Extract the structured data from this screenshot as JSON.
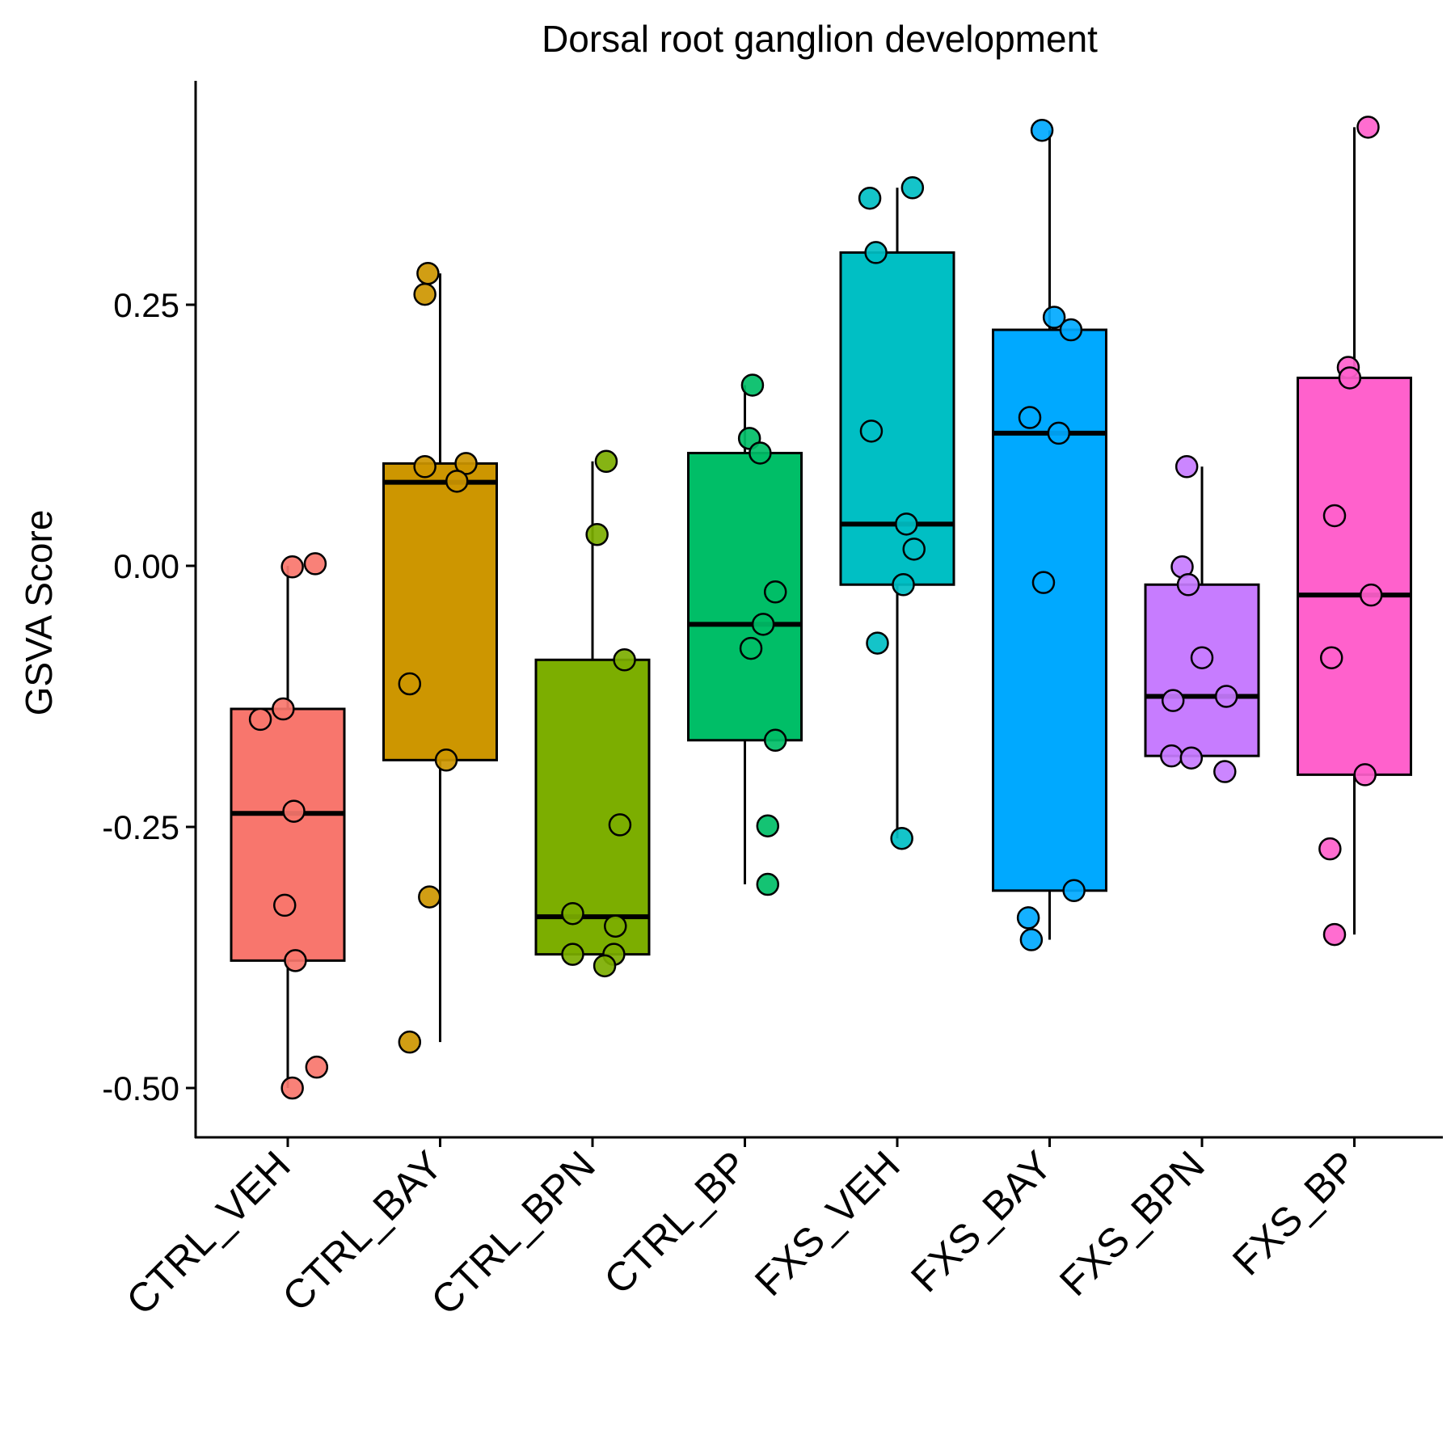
{
  "chart_data": {
    "type": "box",
    "title": "Dorsal root ganglion development",
    "xlabel": "",
    "ylabel": "GSVA Score",
    "ylim": [
      -0.545,
      0.46
    ],
    "yticks": [
      0.25,
      0.0,
      -0.25,
      -0.5
    ],
    "ytick_labels": [
      "0.25",
      "0.00",
      "-0.25",
      "-0.50"
    ],
    "grid": false,
    "legend": "none",
    "categories": [
      "CTRL_VEH",
      "CTRL_BAY",
      "CTRL_BPN",
      "CTRL_BP",
      "FXS_VEH",
      "FXS_BAY",
      "FXS_BPN",
      "FXS_BP"
    ],
    "series": [
      {
        "category": "CTRL_VEH",
        "color": "#F8766D",
        "whisker_low": -0.5,
        "q1": -0.378,
        "median": -0.237,
        "q3": -0.137,
        "whisker_high": 0.0,
        "points": [
          {
            "dx": 0.03,
            "y": -0.001
          },
          {
            "dx": 0.18,
            "y": 0.002
          },
          {
            "dx": -0.18,
            "y": -0.147
          },
          {
            "dx": -0.03,
            "y": -0.137
          },
          {
            "dx": 0.04,
            "y": -0.235
          },
          {
            "dx": -0.02,
            "y": -0.325
          },
          {
            "dx": 0.05,
            "y": -0.378
          },
          {
            "dx": 0.19,
            "y": -0.48
          },
          {
            "dx": 0.03,
            "y": -0.5
          }
        ]
      },
      {
        "category": "CTRL_BAY",
        "color": "#CD9600",
        "whisker_low": -0.456,
        "q1": -0.186,
        "median": 0.08,
        "q3": 0.098,
        "whisker_high": 0.28,
        "points": [
          {
            "dx": -0.08,
            "y": 0.28
          },
          {
            "dx": -0.1,
            "y": 0.26
          },
          {
            "dx": -0.1,
            "y": 0.095
          },
          {
            "dx": 0.17,
            "y": 0.098
          },
          {
            "dx": 0.11,
            "y": 0.081
          },
          {
            "dx": -0.2,
            "y": -0.113
          },
          {
            "dx": 0.04,
            "y": -0.186
          },
          {
            "dx": -0.07,
            "y": -0.317
          },
          {
            "dx": -0.2,
            "y": -0.456
          }
        ]
      },
      {
        "category": "CTRL_BPN",
        "color": "#7CAE00",
        "whisker_low": -0.372,
        "q1": -0.372,
        "median": -0.336,
        "q3": -0.09,
        "whisker_high": 0.1,
        "points": [
          {
            "dx": 0.09,
            "y": 0.1
          },
          {
            "dx": 0.03,
            "y": 0.03
          },
          {
            "dx": 0.21,
            "y": -0.09
          },
          {
            "dx": 0.18,
            "y": -0.248
          },
          {
            "dx": -0.13,
            "y": -0.333
          },
          {
            "dx": 0.15,
            "y": -0.345
          },
          {
            "dx": -0.13,
            "y": -0.372
          },
          {
            "dx": 0.14,
            "y": -0.372
          },
          {
            "dx": 0.08,
            "y": -0.383
          }
        ]
      },
      {
        "category": "CTRL_BP",
        "color": "#00BE67",
        "whisker_low": -0.305,
        "q1": -0.167,
        "median": -0.056,
        "q3": 0.108,
        "whisker_high": 0.173,
        "points": [
          {
            "dx": 0.05,
            "y": 0.173
          },
          {
            "dx": 0.03,
            "y": 0.122
          },
          {
            "dx": 0.1,
            "y": 0.108
          },
          {
            "dx": 0.2,
            "y": -0.025
          },
          {
            "dx": 0.12,
            "y": -0.056
          },
          {
            "dx": 0.04,
            "y": -0.079
          },
          {
            "dx": 0.2,
            "y": -0.167
          },
          {
            "dx": 0.15,
            "y": -0.249
          },
          {
            "dx": 0.15,
            "y": -0.305
          }
        ]
      },
      {
        "category": "FXS_VEH",
        "color": "#00BFC4",
        "whisker_low": -0.261,
        "q1": -0.018,
        "median": 0.04,
        "q3": 0.3,
        "whisker_high": 0.362,
        "points": [
          {
            "dx": -0.18,
            "y": 0.352
          },
          {
            "dx": 0.1,
            "y": 0.362
          },
          {
            "dx": -0.14,
            "y": 0.3
          },
          {
            "dx": -0.17,
            "y": 0.129
          },
          {
            "dx": 0.06,
            "y": 0.04
          },
          {
            "dx": 0.11,
            "y": 0.016
          },
          {
            "dx": 0.04,
            "y": -0.018
          },
          {
            "dx": -0.13,
            "y": -0.074
          },
          {
            "dx": 0.03,
            "y": -0.261
          }
        ]
      },
      {
        "category": "FXS_BAY",
        "color": "#00A9FF",
        "whisker_low": -0.358,
        "q1": -0.311,
        "median": 0.127,
        "q3": 0.226,
        "whisker_high": 0.417,
        "points": [
          {
            "dx": -0.05,
            "y": 0.417
          },
          {
            "dx": 0.03,
            "y": 0.238
          },
          {
            "dx": 0.14,
            "y": 0.226
          },
          {
            "dx": -0.13,
            "y": 0.142
          },
          {
            "dx": 0.06,
            "y": 0.127
          },
          {
            "dx": -0.04,
            "y": -0.016
          },
          {
            "dx": 0.16,
            "y": -0.311
          },
          {
            "dx": -0.14,
            "y": -0.337
          },
          {
            "dx": -0.12,
            "y": -0.358
          }
        ]
      },
      {
        "category": "FXS_BPN",
        "color": "#C77CFF",
        "whisker_low": -0.182,
        "q1": -0.182,
        "median": -0.125,
        "q3": -0.018,
        "whisker_high": 0.095,
        "points": [
          {
            "dx": -0.1,
            "y": 0.095
          },
          {
            "dx": -0.13,
            "y": -0.001
          },
          {
            "dx": -0.09,
            "y": -0.018
          },
          {
            "dx": 0.0,
            "y": -0.088
          },
          {
            "dx": -0.19,
            "y": -0.129
          },
          {
            "dx": 0.16,
            "y": -0.125
          },
          {
            "dx": -0.2,
            "y": -0.182
          },
          {
            "dx": -0.07,
            "y": -0.184
          },
          {
            "dx": 0.15,
            "y": -0.197
          }
        ]
      },
      {
        "category": "FXS_BP",
        "color": "#FF61CC",
        "whisker_low": -0.353,
        "q1": -0.2,
        "median": -0.028,
        "q3": 0.18,
        "whisker_high": 0.42,
        "points": [
          {
            "dx": 0.09,
            "y": 0.42
          },
          {
            "dx": -0.04,
            "y": 0.19
          },
          {
            "dx": -0.03,
            "y": 0.18
          },
          {
            "dx": -0.13,
            "y": 0.048
          },
          {
            "dx": 0.11,
            "y": -0.028
          },
          {
            "dx": -0.15,
            "y": -0.088
          },
          {
            "dx": 0.07,
            "y": -0.2
          },
          {
            "dx": -0.16,
            "y": -0.271
          },
          {
            "dx": -0.13,
            "y": -0.353
          }
        ]
      }
    ]
  }
}
